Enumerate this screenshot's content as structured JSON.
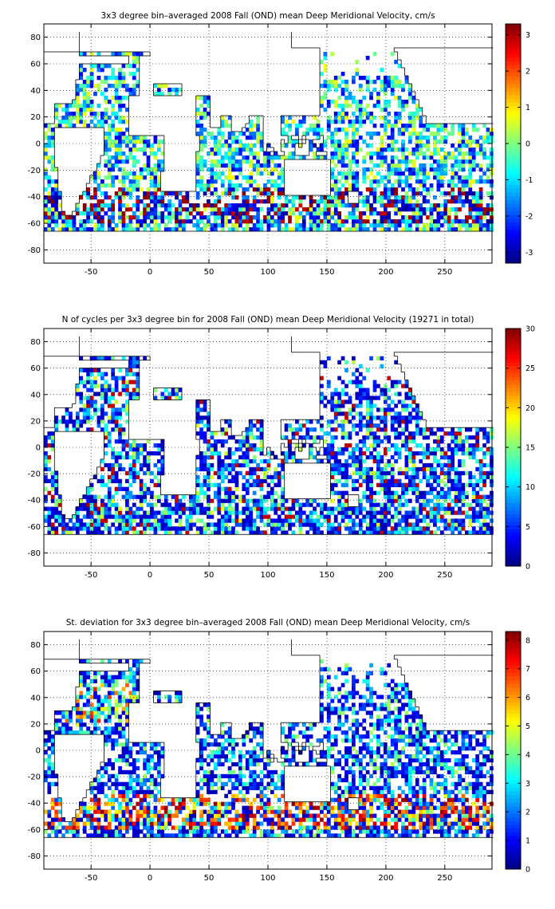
{
  "chart_data": [
    {
      "type": "heatmap",
      "title": "3x3 degree bin–averaged 2008 Fall (OND) mean Deep Meridional Velocity, cm/s",
      "x_ticks": [
        -50,
        0,
        50,
        100,
        150,
        200,
        250
      ],
      "y_ticks": [
        -80,
        -60,
        -40,
        -20,
        0,
        20,
        40,
        60,
        80
      ],
      "xlim": [
        -90,
        290
      ],
      "ylim": [
        -90,
        90
      ],
      "colorbar_ticks": [
        -3,
        -2,
        -1,
        0,
        1,
        2,
        3
      ],
      "clim": [
        -3.3,
        3.3
      ],
      "colormap": "jet",
      "grid": true,
      "bin_size_deg": 3
    },
    {
      "type": "heatmap",
      "title": "N of cycles per 3x3 degree bin for 2008 Fall (OND) mean Deep Meridional Velocity (19271 in total)",
      "x_ticks": [
        -50,
        0,
        50,
        100,
        150,
        200,
        250
      ],
      "y_ticks": [
        -80,
        -60,
        -40,
        -20,
        0,
        20,
        40,
        60,
        80
      ],
      "xlim": [
        -90,
        290
      ],
      "ylim": [
        -90,
        90
      ],
      "colorbar_ticks": [
        0,
        5,
        10,
        15,
        20,
        25,
        30
      ],
      "clim": [
        0,
        30
      ],
      "colormap": "jet",
      "grid": true,
      "bin_size_deg": 3
    },
    {
      "type": "heatmap",
      "title": "St. deviation for 3x3 degree bin–averaged 2008 Fall (OND) mean Deep Meridional Velocity, cm/s",
      "x_ticks": [
        -50,
        0,
        50,
        100,
        150,
        200,
        250
      ],
      "y_ticks": [
        -80,
        -60,
        -40,
        -20,
        0,
        20,
        40,
        60,
        80
      ],
      "xlim": [
        -90,
        290
      ],
      "ylim": [
        -90,
        90
      ],
      "colorbar_ticks": [
        0,
        1,
        2,
        3,
        4,
        5,
        6,
        7,
        8
      ],
      "clim": [
        0,
        8.3
      ],
      "colormap": "jet",
      "grid": true,
      "bin_size_deg": 3
    }
  ]
}
